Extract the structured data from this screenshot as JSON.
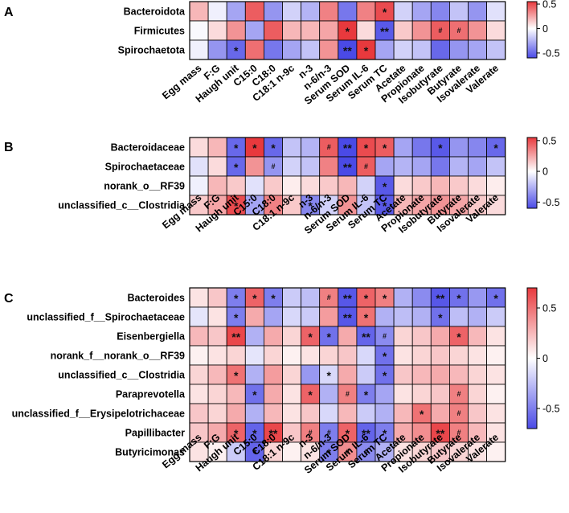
{
  "chart_data": [
    {
      "type": "heatmap",
      "panel": "A",
      "columns": [
        "Egg mass",
        "F:G",
        "Haugh unit",
        "C15:0",
        "C18:0",
        "C18:1 n-9c",
        "n-3",
        "n-6/n-3",
        "Serum SOD",
        "Serum IL-6",
        "Serum TC",
        "Acetate",
        "Propionate",
        "Isobutyrate",
        "Butyrate",
        "Isovalerate",
        "Valerate"
      ],
      "rows": [
        "Bacteroidota",
        "Firmicutes",
        "Spirochaetota"
      ],
      "values": [
        [
          0.2,
          -0.05,
          -0.3,
          0.45,
          -0.35,
          -0.15,
          -0.25,
          0.35,
          -0.45,
          0.35,
          0.5,
          -0.15,
          -0.3,
          -0.4,
          -0.2,
          -0.35,
          -0.1
        ],
        [
          -0.02,
          0.1,
          0.3,
          -0.3,
          0.45,
          0.2,
          0.2,
          0.25,
          0.55,
          0.1,
          -0.55,
          0.15,
          0.3,
          0.45,
          0.4,
          0.3,
          0.1
        ],
        [
          -0.05,
          -0.35,
          -0.5,
          0.4,
          -0.45,
          -0.3,
          -0.2,
          0.3,
          -0.6,
          0.55,
          -0.3,
          -0.15,
          -0.2,
          -0.5,
          -0.35,
          -0.3,
          -0.2
        ]
      ],
      "marks": [
        [
          "",
          "",
          "",
          "",
          "",
          "",
          "",
          "",
          "",
          "",
          "*",
          "",
          "",
          "",
          "",
          "",
          ""
        ],
        [
          "",
          "",
          "",
          "",
          "",
          "",
          "",
          "",
          "*",
          "",
          "**",
          "",
          "",
          "#",
          "#",
          "",
          ""
        ],
        [
          "",
          "",
          "*",
          "",
          "",
          "",
          "",
          "",
          "**",
          "*",
          "",
          "",
          "",
          "",
          "",
          "",
          ""
        ]
      ],
      "colorbar": {
        "ticks": [
          0.5,
          0,
          -0.5
        ],
        "tick_labels": [
          "0.5",
          "0",
          "-0.5"
        ],
        "range": [
          -0.6,
          0.55
        ]
      }
    },
    {
      "type": "heatmap",
      "panel": "B",
      "columns": [
        "Egg mass",
        "F:G",
        "Haugh unit",
        "C15:0",
        "C18:0",
        "C18:1 n-9c",
        "n-3",
        "n-6/n-3",
        "Serum SOD",
        "Serum IL-6",
        "Serum TC",
        "Acetate",
        "Propionate",
        "Isobutyrate",
        "Butyrate",
        "Isovalerate",
        "Valerate"
      ],
      "rows": [
        "Bacteroidaceae",
        "Spirochaetaceae",
        "norank_o__RF39",
        "unclassified_c__Clostridia"
      ],
      "values": [
        [
          0.1,
          0.2,
          -0.5,
          0.55,
          -0.5,
          -0.2,
          -0.25,
          0.45,
          -0.6,
          0.5,
          0.45,
          -0.3,
          -0.45,
          -0.55,
          -0.35,
          -0.4,
          -0.5
        ],
        [
          -0.1,
          0.1,
          -0.5,
          0.3,
          -0.35,
          -0.15,
          -0.2,
          0.35,
          -0.6,
          0.45,
          -0.3,
          -0.25,
          -0.3,
          -0.45,
          -0.25,
          -0.3,
          -0.2
        ],
        [
          -0.05,
          0.2,
          0.15,
          -0.1,
          0.15,
          0.05,
          0.1,
          0.15,
          0.2,
          -0.15,
          -0.55,
          0.1,
          0.15,
          0.2,
          0.15,
          0.1,
          0.05
        ],
        [
          0.15,
          0.25,
          0.5,
          -0.3,
          0.35,
          0.15,
          -0.4,
          -0.15,
          0.3,
          -0.2,
          -0.55,
          0.2,
          0.25,
          0.3,
          0.25,
          0.15,
          0.1
        ]
      ],
      "marks": [
        [
          "",
          "",
          "*",
          "*",
          "*",
          "",
          "",
          "#",
          "**",
          "*",
          "*",
          "",
          "",
          "*",
          "",
          "",
          "*"
        ],
        [
          "",
          "",
          "*",
          "",
          "#",
          "",
          "",
          "",
          "**",
          "#",
          "",
          "",
          "",
          "",
          "",
          "",
          ""
        ],
        [
          "",
          "",
          "",
          "",
          "",
          "",
          "",
          "",
          "",
          "",
          "*",
          "",
          "",
          "",
          "",
          "",
          ""
        ],
        [
          "",
          "",
          "*",
          "",
          "",
          "",
          "*",
          "",
          "",
          "",
          "*",
          "",
          "",
          "",
          "",
          "",
          ""
        ]
      ],
      "colorbar": {
        "ticks": [
          0.5,
          0,
          -0.5
        ],
        "tick_labels": [
          "0.5",
          "0",
          "-0.5"
        ],
        "range": [
          -0.6,
          0.55
        ]
      }
    },
    {
      "type": "heatmap",
      "panel": "C",
      "columns": [
        "Egg mass",
        "F:G",
        "Haugh unit",
        "C15:0",
        "C18:0",
        "C18:1 n-9c",
        "n-3",
        "n-6/n-3",
        "Serum SOD",
        "Serum IL-6",
        "Serum TC",
        "Acetate",
        "Propionate",
        "Isobutyrate",
        "Butyrate",
        "Isovalerate",
        "Valerate"
      ],
      "rows": [
        "Bacteroides",
        "unclassified_f__Spirochaetaceae",
        "Eisenbergiella",
        "norank_f__norank_o__RF39",
        "unclassified_c__Clostridia",
        "Paraprevotella",
        "unclassified_f__Erysipelotrichaceae",
        "Papillibacter",
        "Butyricimonas"
      ],
      "values": [
        [
          0.1,
          0.2,
          -0.5,
          0.55,
          -0.5,
          -0.2,
          -0.25,
          0.45,
          -0.65,
          0.55,
          0.45,
          -0.3,
          -0.45,
          -0.65,
          -0.55,
          -0.4,
          -0.55
        ],
        [
          -0.1,
          0.1,
          -0.5,
          0.3,
          -0.35,
          -0.15,
          -0.2,
          0.35,
          -0.65,
          0.5,
          -0.3,
          -0.25,
          -0.3,
          -0.55,
          -0.25,
          -0.3,
          -0.2
        ],
        [
          0.25,
          0.2,
          0.65,
          -0.3,
          0.3,
          0.15,
          0.55,
          -0.55,
          0.3,
          -0.6,
          -0.45,
          0.15,
          0.2,
          0.3,
          0.55,
          0.25,
          0.1
        ],
        [
          0.05,
          0.1,
          0.15,
          -0.1,
          0.15,
          0.05,
          0.1,
          0.15,
          0.2,
          -0.15,
          -0.55,
          0.1,
          0.15,
          0.2,
          0.15,
          0.1,
          0.05
        ],
        [
          0.15,
          0.25,
          0.5,
          -0.3,
          0.35,
          0.15,
          -0.4,
          -0.15,
          0.3,
          -0.2,
          -0.55,
          0.2,
          0.25,
          0.3,
          0.25,
          0.15,
          0.1
        ],
        [
          0.1,
          0.15,
          0.25,
          -0.55,
          0.3,
          0.1,
          0.55,
          -0.3,
          0.45,
          -0.5,
          -0.35,
          0.1,
          0.15,
          0.2,
          0.45,
          0.15,
          0.05
        ],
        [
          0.2,
          0.15,
          0.3,
          -0.3,
          0.25,
          0.1,
          0.2,
          -0.15,
          0.25,
          -0.2,
          -0.3,
          0.25,
          0.5,
          0.3,
          0.45,
          0.2,
          0.1
        ],
        [
          0.2,
          0.3,
          0.55,
          -0.6,
          0.65,
          0.2,
          0.45,
          -0.5,
          0.55,
          -0.6,
          -0.5,
          0.3,
          0.4,
          0.65,
          0.45,
          0.25,
          0.1
        ],
        [
          0.1,
          0.05,
          -0.2,
          -0.6,
          0.15,
          0.05,
          0.1,
          -0.5,
          0.4,
          -0.45,
          -0.3,
          0.1,
          0.15,
          0.2,
          0.15,
          0.1,
          0.05
        ]
      ],
      "marks": [
        [
          "",
          "",
          "*",
          "*",
          "*",
          "",
          "",
          "#",
          "**",
          "*",
          "*",
          "",
          "",
          "**",
          "*",
          "",
          "*"
        ],
        [
          "",
          "",
          "*",
          "",
          "",
          "",
          "",
          "",
          "**",
          "*",
          "",
          "",
          "",
          "*",
          "",
          "",
          ""
        ],
        [
          "",
          "",
          "**",
          "",
          "",
          "",
          "*",
          "*",
          "",
          "**",
          "#",
          "",
          "",
          "",
          "*",
          "",
          ""
        ],
        [
          "",
          "",
          "",
          "",
          "",
          "",
          "",
          "",
          "",
          "",
          "*",
          "",
          "",
          "",
          "",
          "",
          ""
        ],
        [
          "",
          "",
          "*",
          "",
          "",
          "",
          "",
          "*",
          "",
          "",
          "*",
          "",
          "",
          "",
          "",
          "",
          ""
        ],
        [
          "",
          "",
          "",
          "*",
          "",
          "",
          "*",
          "",
          "#",
          "*",
          "",
          "",
          "",
          "",
          "#",
          "",
          ""
        ],
        [
          "",
          "",
          "",
          "",
          "",
          "",
          "",
          "",
          "",
          "",
          "",
          "",
          "*",
          "",
          "#",
          "",
          ""
        ],
        [
          "",
          "",
          "*",
          "*",
          "**",
          "",
          "#",
          "#",
          "*",
          "**",
          "*",
          "",
          "",
          "**",
          "#",
          "",
          ""
        ],
        [
          "",
          "",
          "",
          "*",
          "",
          "",
          "",
          "*",
          "#",
          "#",
          "",
          "",
          "",
          "",
          "",
          "",
          ""
        ]
      ],
      "colorbar": {
        "ticks": [
          0.5,
          0,
          -0.5
        ],
        "tick_labels": [
          "0.5",
          "0",
          "-0.5"
        ],
        "range": [
          -0.7,
          0.7
        ]
      }
    }
  ],
  "colors": {
    "positive": "#e8393d",
    "neutral": "#ffffff",
    "negative": "#4a4ae6",
    "grid": "#000000"
  }
}
